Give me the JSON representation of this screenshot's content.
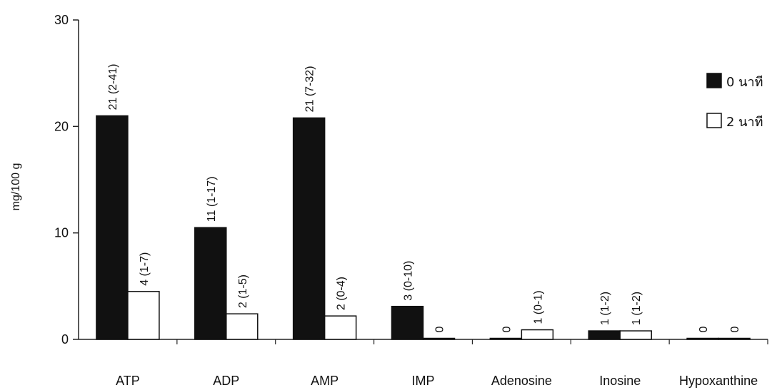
{
  "chart_data": {
    "type": "bar",
    "title": "",
    "xlabel": "",
    "ylabel": "mg/100 g",
    "ylim": [
      0,
      30
    ],
    "yticks": [
      0,
      10,
      20,
      30
    ],
    "grid": false,
    "legend_position": "top-right",
    "categories": [
      "ATP",
      "ADP",
      "AMP",
      "IMP",
      "Adenosine",
      "Inosine",
      "Hypoxanthine"
    ],
    "series": [
      {
        "name": "0 นาที",
        "color": "#111111",
        "values": [
          21,
          10.5,
          20.8,
          3.1,
          0,
          0.8,
          0
        ],
        "labels": [
          "21 (2-41)",
          "11 (1-17)",
          "21 (7-32)",
          "3 (0-10)",
          "0",
          "1 (1-2)",
          "0"
        ]
      },
      {
        "name": "2 นาที",
        "color": "#ffffff",
        "values": [
          4.5,
          2.4,
          2.2,
          0,
          0.9,
          0.8,
          0
        ],
        "labels": [
          "4 (1-7)",
          "2 (1-5)",
          "2 (0-4)",
          "0",
          "1 (0-1)",
          "1 (1-2)",
          "0"
        ]
      }
    ]
  }
}
